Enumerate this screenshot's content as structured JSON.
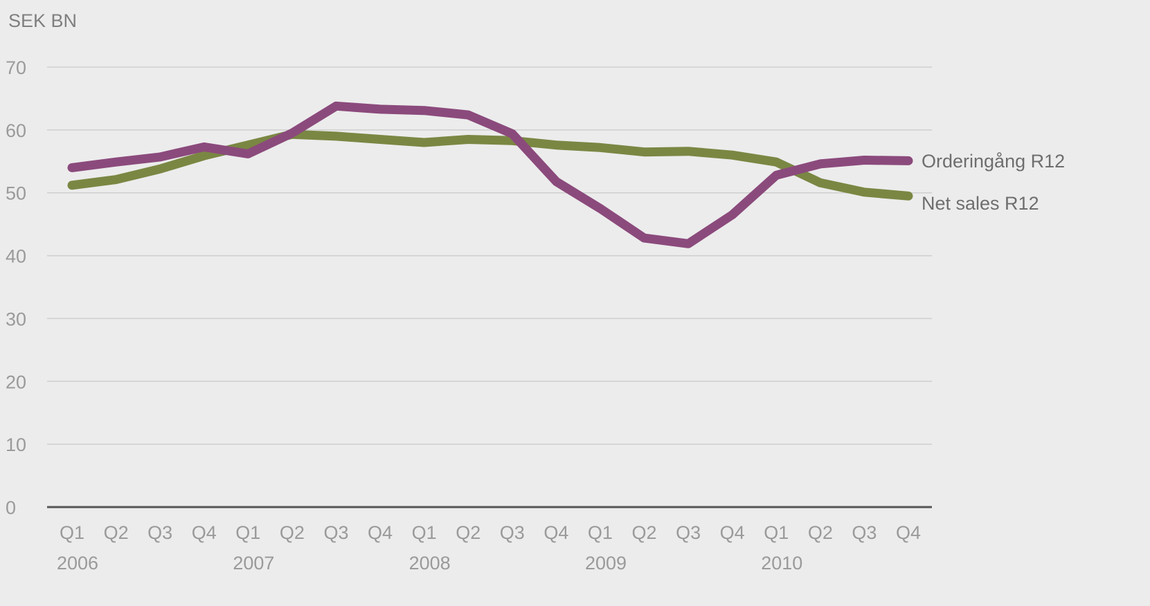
{
  "chart_data": {
    "type": "line",
    "ylabel": "SEK BN",
    "ylim": [
      0,
      70
    ],
    "yticks": [
      0,
      10,
      20,
      30,
      40,
      50,
      60,
      70
    ],
    "grid": true,
    "legend": "right (labels at line ends)",
    "categories": [
      "Q1",
      "Q2",
      "Q3",
      "Q4",
      "Q1",
      "Q2",
      "Q3",
      "Q4",
      "Q1",
      "Q2",
      "Q3",
      "Q4",
      "Q1",
      "Q2",
      "Q3",
      "Q4",
      "Q1",
      "Q2",
      "Q3",
      "Q4"
    ],
    "years": [
      "2006",
      "2007",
      "2008",
      "2009",
      "2010"
    ],
    "series": [
      {
        "name": "Orderingång R12",
        "color": "#8b4a7c",
        "values": [
          54.0,
          54.9,
          55.7,
          57.3,
          56.2,
          59.5,
          63.8,
          63.3,
          63.1,
          62.4,
          59.4,
          51.8,
          47.5,
          42.8,
          41.9,
          46.5,
          52.8,
          54.6,
          55.2,
          55.1
        ]
      },
      {
        "name": "Net sales R12",
        "color": "#7a8743",
        "values": [
          51.2,
          52.1,
          53.8,
          55.9,
          57.6,
          59.3,
          59.0,
          58.5,
          58.0,
          58.5,
          58.3,
          57.6,
          57.2,
          56.5,
          56.6,
          56.0,
          54.9,
          51.6,
          50.1,
          49.5
        ]
      }
    ]
  }
}
